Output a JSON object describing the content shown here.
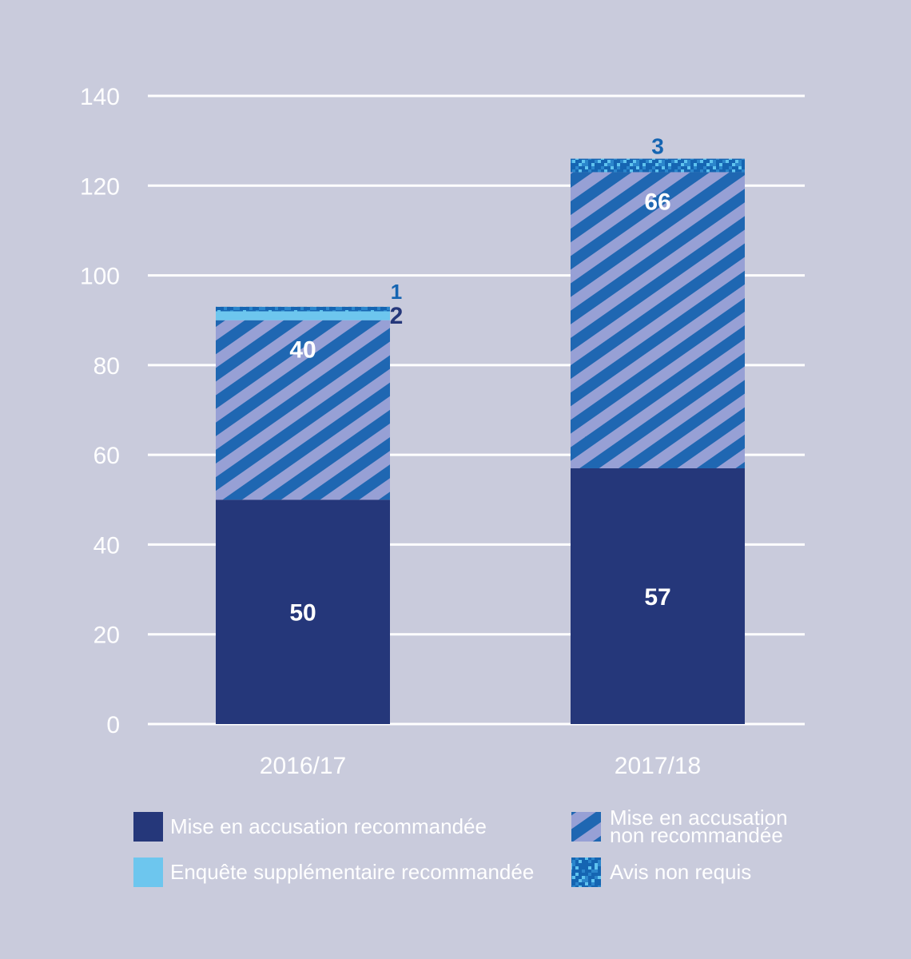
{
  "colors": {
    "background": "#c9cbdc",
    "gridline": "#ffffff",
    "axis_text": "#ffffff",
    "legend_text": "#ffffff",
    "navy": "#25377a",
    "stripe_dark": "#1f67b2",
    "stripe_light": "#97a0d5",
    "light_blue": "#6dc6ee",
    "pixel_dark": "#1565b2",
    "pixel_light": "#5fc3ef"
  },
  "chart_data": {
    "type": "bar",
    "stacked": true,
    "categories": [
      "2016/17",
      "2017/18"
    ],
    "series": [
      {
        "name": "Mise en accusation recommandée",
        "values": [
          50,
          57
        ],
        "labels": [
          "50",
          "57"
        ],
        "pattern": "solid-navy"
      },
      {
        "name": "Mise en accusation non recommandée",
        "values": [
          40,
          66
        ],
        "labels": [
          "40",
          "66"
        ],
        "pattern": "stripes"
      },
      {
        "name": "Enquête supplémentaire recommandée",
        "values": [
          2,
          0
        ],
        "labels": [
          "2",
          ""
        ],
        "pattern": "solid-lightblue"
      },
      {
        "name": "Avis non requis",
        "values": [
          1,
          3
        ],
        "labels": [
          "1",
          "3"
        ],
        "pattern": "pixels"
      }
    ],
    "ylim": [
      0,
      140
    ],
    "yticks": [
      0,
      20,
      40,
      60,
      80,
      100,
      120,
      140
    ],
    "ytick_labels": [
      "0",
      "20",
      "40",
      "60",
      "80",
      "100",
      "120",
      "140"
    ],
    "grid": true,
    "legend_position": "bottom",
    "legend_lines": {
      "Mise en accusation recommandée": [
        "Mise en accusation recommandée"
      ],
      "Mise en accusation non recommandée": [
        "Mise en accusation",
        "non recommandée"
      ],
      "Enquête supplémentaire recommandée": [
        "Enquête supplémentaire recommandée"
      ],
      "Avis non requis": [
        "Avis non requis"
      ]
    }
  }
}
